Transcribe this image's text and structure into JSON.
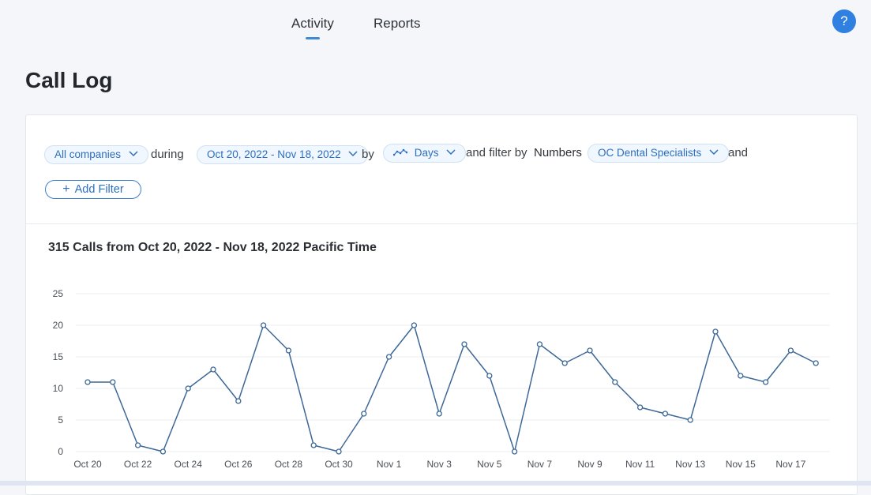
{
  "nav": {
    "tabs": [
      {
        "label": "Activity",
        "active": true
      },
      {
        "label": "Reports",
        "active": false
      }
    ],
    "help_label": "?"
  },
  "page": {
    "title": "Call Log"
  },
  "filters": {
    "company": "All companies",
    "during_word": "during",
    "date_range": "Oct 20, 2022 - Nov 18, 2022",
    "by_word": "by",
    "granularity": "Days",
    "filter_by_word": "and filter by",
    "filter_field": "Numbers",
    "filter_value": "OC Dental Specialists",
    "and_word": "and",
    "add_filter_label": "Add Filter"
  },
  "colors": {
    "accent": "#2f80e1",
    "line": "#3e6896",
    "pill_text": "#2d6fbf"
  },
  "chart_data": {
    "type": "line",
    "title": "315 Calls from Oct 20, 2022 - Nov 18, 2022 Pacific Time",
    "x": [
      "Oct 20",
      "Oct 21",
      "Oct 22",
      "Oct 23",
      "Oct 24",
      "Oct 25",
      "Oct 26",
      "Oct 27",
      "Oct 28",
      "Oct 29",
      "Oct 30",
      "Oct 31",
      "Nov 1",
      "Nov 2",
      "Nov 3",
      "Nov 4",
      "Nov 5",
      "Nov 6",
      "Nov 7",
      "Nov 8",
      "Nov 9",
      "Nov 10",
      "Nov 11",
      "Nov 12",
      "Nov 13",
      "Nov 14",
      "Nov 15",
      "Nov 16",
      "Nov 17",
      "Nov 18"
    ],
    "series": [
      {
        "values": [
          11,
          11,
          1,
          0,
          10,
          13,
          8,
          20,
          16,
          1,
          0,
          6,
          15,
          20,
          6,
          17,
          12,
          0,
          17,
          14,
          16,
          11,
          7,
          6,
          5,
          19,
          12,
          11,
          16,
          14
        ]
      }
    ],
    "x_tick_labels": [
      "Oct 20",
      "Oct 22",
      "Oct 24",
      "Oct 26",
      "Oct 28",
      "Oct 30",
      "Nov 1",
      "Nov 3",
      "Nov 5",
      "Nov 7",
      "Nov 9",
      "Nov 11",
      "Nov 13",
      "Nov 15",
      "Nov 17"
    ],
    "y_ticks": [
      0,
      5,
      10,
      15,
      20,
      25
    ],
    "ylim": [
      0,
      25
    ],
    "grid": true,
    "legend": "none"
  }
}
